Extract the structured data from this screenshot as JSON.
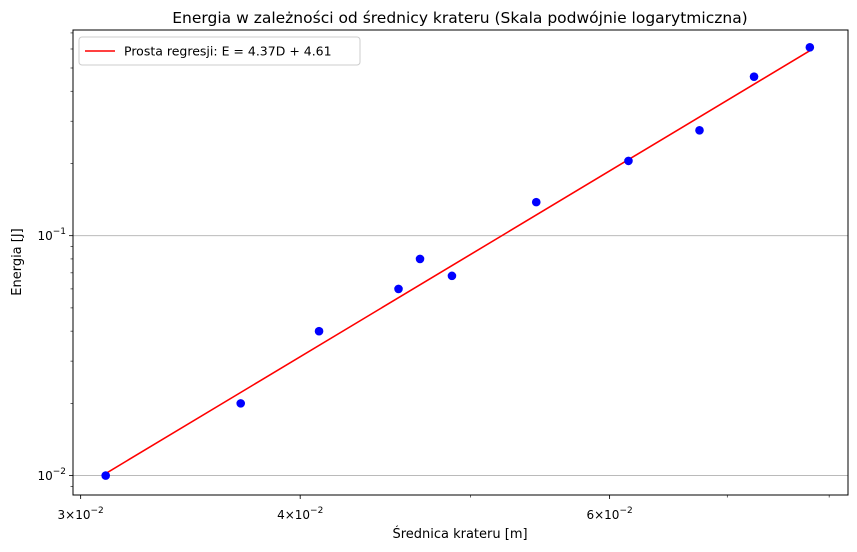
{
  "chart_data": {
    "type": "scatter",
    "title": "Energia w zależności od średnicy krateru (Skala podwójnie logarytmiczna)",
    "xlabel": "Średnica krateru [m]",
    "ylabel": "Energia [J]",
    "xscale": "log",
    "yscale": "log",
    "xlim": [
      0.0297,
      0.082
    ],
    "ylim": [
      0.0083,
      0.72
    ],
    "grid": "y-major",
    "legend_position": "top-left",
    "x_ticks": [
      {
        "value": 0.03,
        "base": "3",
        "sup": "−2"
      },
      {
        "value": 0.04,
        "base": "4",
        "sup": "−2"
      },
      {
        "value": 0.06,
        "base": "6",
        "sup": "−2"
      }
    ],
    "y_ticks": [
      {
        "value": 0.01,
        "base": "10",
        "sup": "−2"
      },
      {
        "value": 0.1,
        "base": "10",
        "sup": "−1"
      }
    ],
    "series": [
      {
        "kind": "scatter",
        "color": "#0000ff",
        "x": [
          0.031,
          0.037,
          0.041,
          0.0455,
          0.0468,
          0.0488,
          0.0545,
          0.0615,
          0.0675,
          0.0725,
          0.078
        ],
        "y": [
          0.01,
          0.02,
          0.04,
          0.06,
          0.08,
          0.068,
          0.138,
          0.205,
          0.275,
          0.46,
          0.61
        ]
      },
      {
        "kind": "line",
        "name": "Prosta regresji: E = 4.37D + 4.61",
        "color": "#ff0000",
        "x": [
          0.031,
          0.078
        ],
        "y": [
          0.0102,
          0.59
        ]
      }
    ]
  }
}
